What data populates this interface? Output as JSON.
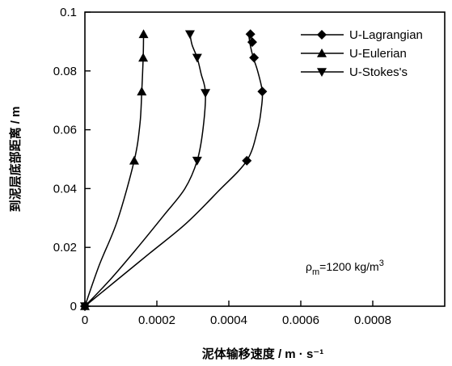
{
  "chart_data": {
    "type": "line",
    "xlabel": "泥体输移速度 / m · s⁻¹",
    "ylabel": "到泥层底部距离 / m",
    "xlim": [
      0,
      0.001
    ],
    "ylim": [
      0,
      0.1
    ],
    "xticks": [
      0,
      0.0002,
      0.0004,
      0.0006,
      0.0008
    ],
    "xtick_labels": [
      "0",
      "0.0002",
      "0.0004",
      "0.0006",
      "0.0008"
    ],
    "yticks": [
      0,
      0.02,
      0.04,
      0.06,
      0.08,
      0.1
    ],
    "ytick_labels": [
      "0",
      "0.02",
      "0.04",
      "0.06",
      "0.08",
      "0.1"
    ],
    "grid": false,
    "legend_position": "top-right",
    "annotation": {
      "rho": "ρ",
      "subscript": "m",
      "value": "=1200  kg/m",
      "superscript": "3"
    },
    "series": [
      {
        "name": "U-Lagrangian",
        "marker": "diamond",
        "curve": [
          [
            0,
            0
          ],
          [
            8e-05,
            0.008
          ],
          [
            0.00018,
            0.018
          ],
          [
            0.00028,
            0.028
          ],
          [
            0.00037,
            0.039
          ],
          [
            0.00045,
            0.0495
          ],
          [
            0.00048,
            0.06
          ],
          [
            0.00049,
            0.067
          ],
          [
            0.000493,
            0.073
          ],
          [
            0.00048,
            0.08
          ],
          [
            0.000468,
            0.0845
          ],
          [
            0.00046,
            0.0885
          ],
          [
            0.000455,
            0.0925
          ]
        ],
        "points": [
          [
            0.00046,
            0.0925
          ],
          [
            0.000465,
            0.0898
          ],
          [
            0.00047,
            0.0845
          ],
          [
            0.000493,
            0.073
          ],
          [
            0.00045,
            0.0495
          ],
          [
            0,
            0
          ]
        ]
      },
      {
        "name": "U-Eulerian",
        "marker": "triangle-up",
        "curve": [
          [
            0,
            0
          ],
          [
            4e-05,
            0.014
          ],
          [
            9e-05,
            0.029
          ],
          [
            0.000137,
            0.0495
          ],
          [
            0.000153,
            0.062
          ],
          [
            0.000158,
            0.073
          ],
          [
            0.000162,
            0.0845
          ],
          [
            0.000163,
            0.0925
          ]
        ],
        "points": [
          [
            0.000163,
            0.0925
          ],
          [
            0.000162,
            0.0845
          ],
          [
            0.000158,
            0.073
          ],
          [
            0.000137,
            0.0495
          ],
          [
            0,
            0
          ]
        ]
      },
      {
        "name": "U-Stokes's",
        "marker": "triangle-down",
        "curve": [
          [
            0,
            0
          ],
          [
            7e-05,
            0.009
          ],
          [
            0.00014,
            0.019
          ],
          [
            0.00022,
            0.031
          ],
          [
            0.000278,
            0.04
          ],
          [
            0.000312,
            0.0495
          ],
          [
            0.000328,
            0.06
          ],
          [
            0.000335,
            0.0725
          ],
          [
            0.000323,
            0.079
          ],
          [
            0.000312,
            0.0845
          ],
          [
            0.000298,
            0.0888
          ],
          [
            0.000292,
            0.0925
          ]
        ],
        "points": [
          [
            0.000292,
            0.0925
          ],
          [
            0.000312,
            0.0845
          ],
          [
            0.000335,
            0.0725
          ],
          [
            0.000312,
            0.0495
          ],
          [
            0,
            0
          ]
        ]
      }
    ]
  }
}
